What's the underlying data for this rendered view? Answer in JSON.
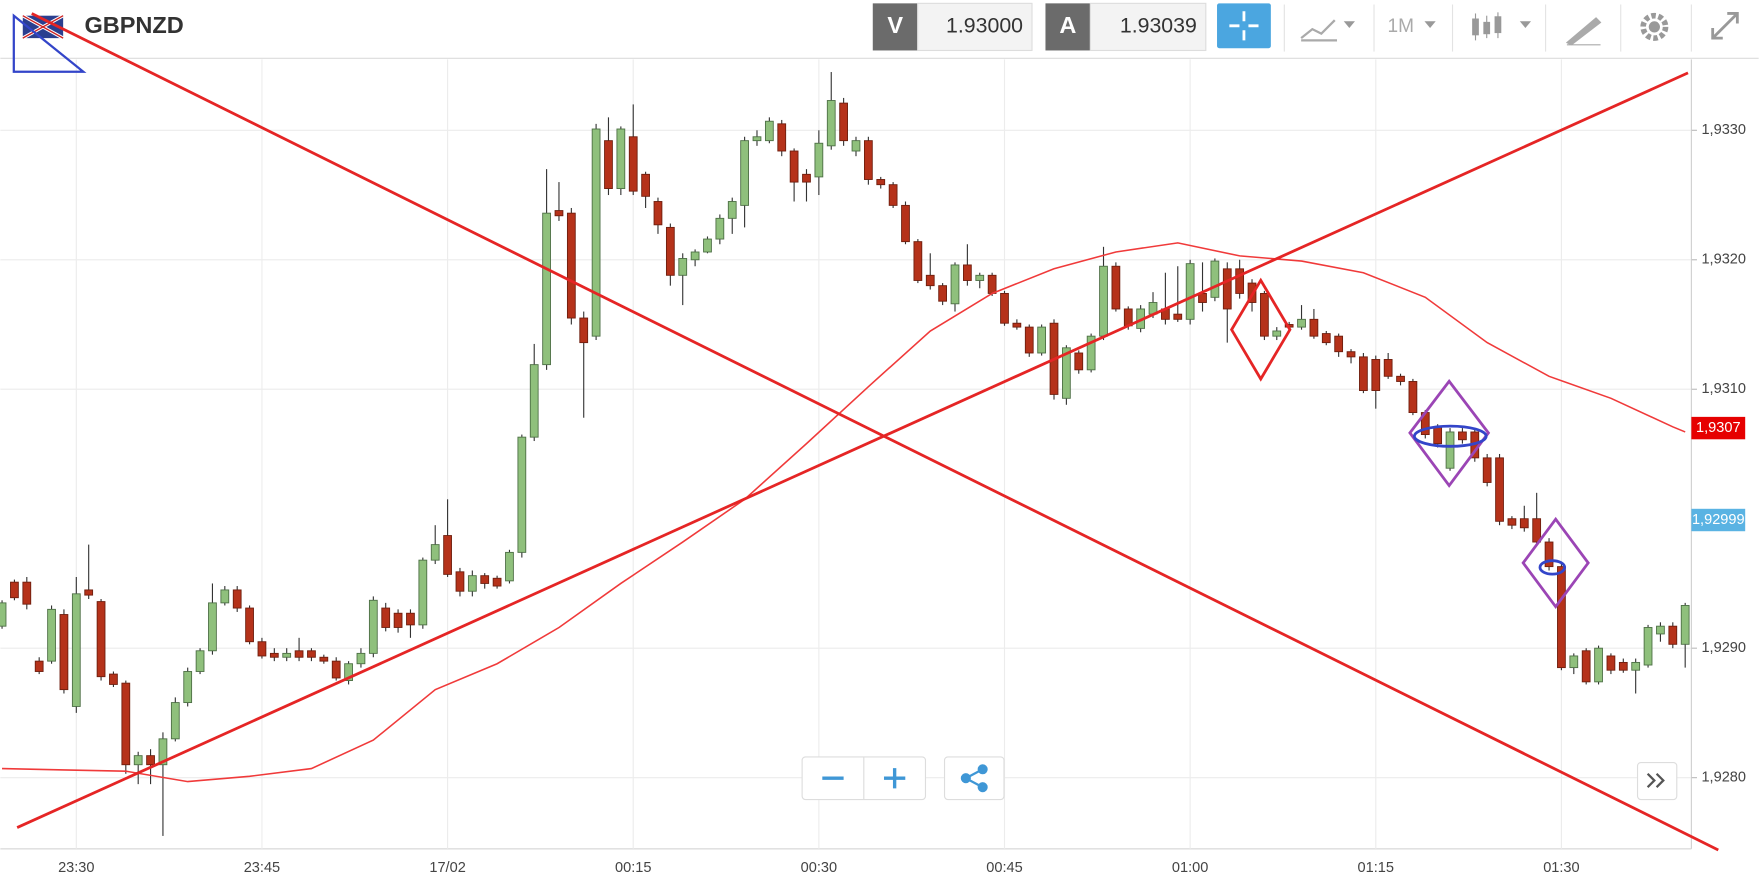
{
  "header": {
    "symbol": "GBPNZD",
    "sell_label": "V",
    "sell_price": "1.93000",
    "buy_label": "A",
    "buy_price": "1.93039",
    "timeframe": "1M"
  },
  "chart_data": {
    "type": "candlestick",
    "categories": [
      null,
      null,
      null,
      null,
      null,
      null,
      "23:30",
      null,
      null,
      null,
      null,
      null,
      null,
      null,
      null,
      null,
      null,
      null,
      null,
      null,
      null,
      "23:45",
      null,
      null,
      null,
      null,
      null,
      null,
      null,
      null,
      null,
      null,
      null,
      null,
      null,
      null,
      "17/02",
      null,
      null,
      null,
      null,
      null,
      null,
      null,
      null,
      null,
      null,
      null,
      null,
      null,
      null,
      "00:15",
      null,
      null,
      null,
      null,
      null,
      null,
      null,
      null,
      null,
      null,
      null,
      null,
      null,
      null,
      "00:30",
      null,
      null,
      null,
      null,
      null,
      null,
      null,
      null,
      null,
      null,
      null,
      null,
      null,
      null,
      "00:45",
      null,
      null,
      null,
      null,
      null,
      null,
      null,
      null,
      null,
      null,
      null,
      null,
      null,
      null,
      "01:00",
      null,
      null,
      null,
      null,
      null,
      null,
      null,
      null,
      null,
      null,
      null,
      null,
      null,
      null,
      "01:15",
      null,
      null,
      null,
      null,
      null,
      null,
      null,
      null,
      null,
      null,
      null,
      null,
      null,
      null,
      "01:30",
      null,
      null,
      null,
      null,
      null,
      null,
      null,
      null,
      null,
      null
    ],
    "ohlc": [
      [
        1.92917,
        1.92937,
        1.92915,
        1.92935
      ],
      [
        1.92951,
        1.92953,
        1.92937,
        1.92939
      ],
      [
        1.92951,
        1.92955,
        1.9293,
        1.92934
      ],
      [
        1.9289,
        1.92893,
        1.9288,
        1.92882
      ],
      [
        1.9289,
        1.92933,
        1.92888,
        1.9293
      ],
      [
        1.92926,
        1.9293,
        1.92865,
        1.92868
      ],
      [
        1.92855,
        1.92955,
        1.9285,
        1.92942
      ],
      [
        1.92945,
        1.9298,
        1.92938,
        1.92941
      ],
      [
        1.92936,
        1.92938,
        1.92875,
        1.92878
      ],
      [
        1.9288,
        1.92882,
        1.9287,
        1.92872
      ],
      [
        1.92873,
        1.92875,
        1.92803,
        1.9281
      ],
      [
        1.9281,
        1.9282,
        1.92795,
        1.92817
      ],
      [
        1.92817,
        1.92822,
        1.92795,
        1.9281
      ],
      [
        1.9281,
        1.92835,
        1.92755,
        1.9283
      ],
      [
        1.9283,
        1.92862,
        1.92828,
        1.92858
      ],
      [
        1.92858,
        1.92885,
        1.92855,
        1.92882
      ],
      [
        1.92882,
        1.929,
        1.9288,
        1.92898
      ],
      [
        1.92898,
        1.9295,
        1.92895,
        1.92935
      ],
      [
        1.92935,
        1.92948,
        1.92933,
        1.92945
      ],
      [
        1.92945,
        1.92948,
        1.92928,
        1.92931
      ],
      [
        1.92931,
        1.92933,
        1.92903,
        1.92905
      ],
      [
        1.92905,
        1.92908,
        1.92892,
        1.92894
      ],
      [
        1.92896,
        1.929,
        1.9289,
        1.92893
      ],
      [
        1.92893,
        1.929,
        1.9289,
        1.92896
      ],
      [
        1.92898,
        1.92908,
        1.9289,
        1.92893
      ],
      [
        1.92898,
        1.929,
        1.9289,
        1.92893
      ],
      [
        1.92893,
        1.92895,
        1.92888,
        1.9289
      ],
      [
        1.9289,
        1.92893,
        1.92875,
        1.92877
      ],
      [
        1.92875,
        1.9289,
        1.92872,
        1.92888
      ],
      [
        1.92888,
        1.929,
        1.92885,
        1.92896
      ],
      [
        1.92896,
        1.9294,
        1.92893,
        1.92937
      ],
      [
        1.92931,
        1.92935,
        1.92913,
        1.92916
      ],
      [
        1.92927,
        1.9293,
        1.92912,
        1.92916
      ],
      [
        1.92927,
        1.9293,
        1.92908,
        1.92918
      ],
      [
        1.92918,
        1.9297,
        1.92915,
        1.92968
      ],
      [
        1.92968,
        1.92995,
        1.92965,
        1.9298
      ],
      [
        1.92987,
        1.93015,
        1.92955,
        1.92957
      ],
      [
        1.92959,
        1.92962,
        1.9294,
        1.92944
      ],
      [
        1.92944,
        1.9296,
        1.9294,
        1.92956
      ],
      [
        1.92956,
        1.92958,
        1.92946,
        1.9295
      ],
      [
        1.92954,
        1.92956,
        1.92946,
        1.92948
      ],
      [
        1.92952,
        1.92976,
        1.9295,
        1.92974
      ],
      [
        1.92974,
        1.93065,
        1.9297,
        1.93063
      ],
      [
        1.93063,
        1.93135,
        1.9306,
        1.93119
      ],
      [
        1.93119,
        1.9327,
        1.93115,
        1.93236
      ],
      [
        1.93238,
        1.9326,
        1.9323,
        1.93234
      ],
      [
        1.93236,
        1.9324,
        1.9315,
        1.93155
      ],
      [
        1.93155,
        1.9316,
        1.93078,
        1.93136
      ],
      [
        1.93141,
        1.93305,
        1.93138,
        1.93301
      ],
      [
        1.93292,
        1.9331,
        1.9325,
        1.93255
      ],
      [
        1.93255,
        1.93303,
        1.9325,
        1.93301
      ],
      [
        1.93295,
        1.9332,
        1.9325,
        1.93253
      ],
      [
        1.93266,
        1.93268,
        1.9324,
        1.93249
      ],
      [
        1.93245,
        1.93248,
        1.9322,
        1.93227
      ],
      [
        1.93225,
        1.93228,
        1.9318,
        1.93188
      ],
      [
        1.93188,
        1.93205,
        1.93165,
        1.93201
      ],
      [
        1.932,
        1.93208,
        1.93195,
        1.93206
      ],
      [
        1.93206,
        1.93218,
        1.93205,
        1.93216
      ],
      [
        1.93216,
        1.93235,
        1.93212,
        1.93232
      ],
      [
        1.93232,
        1.93248,
        1.9322,
        1.93245
      ],
      [
        1.93242,
        1.93295,
        1.93225,
        1.93292
      ],
      [
        1.93292,
        1.933,
        1.93288,
        1.93295
      ],
      [
        1.93292,
        1.9331,
        1.9329,
        1.93307
      ],
      [
        1.93305,
        1.93308,
        1.9328,
        1.93284
      ],
      [
        1.93284,
        1.93286,
        1.93245,
        1.9326
      ],
      [
        1.93266,
        1.9327,
        1.93245,
        1.9326
      ],
      [
        1.93264,
        1.933,
        1.9325,
        1.9329
      ],
      [
        1.93288,
        1.93345,
        1.93285,
        1.93323
      ],
      [
        1.93321,
        1.93325,
        1.93288,
        1.93292
      ],
      [
        1.93284,
        1.93295,
        1.9328,
        1.93292
      ],
      [
        1.93292,
        1.93295,
        1.93258,
        1.93262
      ],
      [
        1.93262,
        1.93264,
        1.93255,
        1.93258
      ],
      [
        1.93258,
        1.9326,
        1.9324,
        1.93242
      ],
      [
        1.93242,
        1.93245,
        1.93212,
        1.93214
      ],
      [
        1.93214,
        1.93216,
        1.93182,
        1.93184
      ],
      [
        1.93188,
        1.93205,
        1.93177,
        1.9318
      ],
      [
        1.9318,
        1.93182,
        1.93165,
        1.93168
      ],
      [
        1.93166,
        1.93198,
        1.9316,
        1.93196
      ],
      [
        1.93196,
        1.93212,
        1.9318,
        1.93184
      ],
      [
        1.93184,
        1.9319,
        1.93178,
        1.93188
      ],
      [
        1.93188,
        1.9319,
        1.93172,
        1.93174
      ],
      [
        1.93174,
        1.93176,
        1.93149,
        1.93151
      ],
      [
        1.93151,
        1.93154,
        1.93146,
        1.93148
      ],
      [
        1.93148,
        1.9315,
        1.93125,
        1.93128
      ],
      [
        1.93128,
        1.9315,
        1.93126,
        1.93148
      ],
      [
        1.93151,
        1.93154,
        1.93092,
        1.93096
      ],
      [
        1.93093,
        1.93134,
        1.93088,
        1.93132
      ],
      [
        1.93128,
        1.9313,
        1.93112,
        1.93115
      ],
      [
        1.93115,
        1.93143,
        1.93113,
        1.93141
      ],
      [
        1.93141,
        1.9321,
        1.93138,
        1.93195
      ],
      [
        1.93195,
        1.93198,
        1.9316,
        1.93162
      ],
      [
        1.93162,
        1.93164,
        1.93146,
        1.93149
      ],
      [
        1.93147,
        1.93165,
        1.93144,
        1.93162
      ],
      [
        1.93158,
        1.93175,
        1.93155,
        1.93167
      ],
      [
        1.93162,
        1.9319,
        1.9315,
        1.93154
      ],
      [
        1.93158,
        1.93195,
        1.93152,
        1.93154
      ],
      [
        1.93154,
        1.932,
        1.9315,
        1.93197
      ],
      [
        1.93174,
        1.93198,
        1.9316,
        1.93167
      ],
      [
        1.93171,
        1.93201,
        1.93168,
        1.93199
      ],
      [
        1.93193,
        1.93198,
        1.93136,
        1.93162
      ],
      [
        1.93193,
        1.932,
        1.9317,
        1.93174
      ],
      [
        1.93182,
        1.93185,
        1.9316,
        1.93167
      ],
      [
        1.93174,
        1.93176,
        1.93138,
        1.93141
      ],
      [
        1.93141,
        1.93148,
        1.93138,
        1.93145
      ],
      [
        1.9315,
        1.93152,
        1.93146,
        1.93148
      ],
      [
        1.93148,
        1.93165,
        1.93146,
        1.93154
      ],
      [
        1.93154,
        1.93162,
        1.93139,
        1.93141
      ],
      [
        1.93143,
        1.93145,
        1.93134,
        1.93136
      ],
      [
        1.93141,
        1.93143,
        1.93125,
        1.93129
      ],
      [
        1.93129,
        1.93131,
        1.9312,
        1.93125
      ],
      [
        1.93125,
        1.93128,
        1.93097,
        1.93099
      ],
      [
        1.93123,
        1.93126,
        1.93085,
        1.93099
      ],
      [
        1.93123,
        1.93128,
        1.93108,
        1.9311
      ],
      [
        1.9311,
        1.93112,
        1.93103,
        1.93106
      ],
      [
        1.93106,
        1.93108,
        1.9308,
        1.93082
      ],
      [
        1.93082,
        1.93084,
        1.93062,
        1.93065
      ],
      [
        1.93071,
        1.93073,
        1.93055,
        1.93058
      ],
      [
        1.93039,
        1.9307,
        1.93037,
        1.93067
      ],
      [
        1.93067,
        1.9307,
        1.93058,
        1.93061
      ],
      [
        1.93067,
        1.9307,
        1.93044,
        1.93047
      ],
      [
        1.93047,
        1.9305,
        1.93025,
        1.93028
      ],
      [
        1.93047,
        1.9305,
        1.92995,
        1.92998
      ],
      [
        1.93,
        1.93002,
        1.92992,
        1.92995
      ],
      [
        1.93,
        1.9301,
        1.9299,
        1.92993
      ],
      [
        1.93,
        1.9302,
        1.9298,
        1.92982
      ],
      [
        1.92982,
        1.92985,
        1.9296,
        1.92963
      ],
      [
        1.92963,
        1.92965,
        1.92883,
        1.92885
      ],
      [
        1.92885,
        1.92896,
        1.9288,
        1.92894
      ],
      [
        1.92898,
        1.929,
        1.92872,
        1.92874
      ],
      [
        1.92874,
        1.92902,
        1.92872,
        1.929
      ],
      [
        1.92894,
        1.92896,
        1.9288,
        1.92883
      ],
      [
        1.92889,
        1.92892,
        1.92881,
        1.92883
      ],
      [
        1.92883,
        1.92892,
        1.92865,
        1.92889
      ],
      [
        1.92887,
        1.92918,
        1.92885,
        1.92916
      ],
      [
        1.92911,
        1.9292,
        1.92905,
        1.92917
      ],
      [
        1.92917,
        1.9292,
        1.929,
        1.92903
      ],
      [
        1.92903,
        1.92935,
        1.92885,
        1.92933
      ]
    ],
    "up_color": "#8fc07c",
    "down_color": "#b5321a",
    "moving_average": {
      "color": "#f03a3a",
      "x": [
        0,
        5,
        10,
        15,
        20,
        25,
        30,
        35,
        40,
        45,
        50,
        55,
        60,
        65,
        70,
        75,
        80,
        85,
        90,
        95,
        100,
        105,
        110,
        115,
        120,
        125,
        130,
        135,
        136
      ],
      "values": [
        1.92807,
        1.92806,
        1.92805,
        1.92797,
        1.92801,
        1.92807,
        1.92829,
        1.92868,
        1.92888,
        1.92916,
        1.9295,
        1.92982,
        1.93015,
        1.93058,
        1.93102,
        1.93145,
        1.93174,
        1.93193,
        1.93206,
        1.93213,
        1.93203,
        1.93199,
        1.9319,
        1.93171,
        1.93136,
        1.9311,
        1.93093,
        1.93071,
        1.93067
      ]
    },
    "ylim": [
      1.92745,
      1.93353
    ],
    "yticks": [
      {
        "value": 1.933,
        "label": "1,9330"
      },
      {
        "value": 1.932,
        "label": "1,9320"
      },
      {
        "value": 1.931,
        "label": "1,9310"
      },
      {
        "value": 1.929,
        "label": "1,9290"
      },
      {
        "value": 1.928,
        "label": "1,9280"
      }
    ],
    "price_markers": [
      {
        "value": 1.9307,
        "label": "1,9307",
        "color": "#e60000"
      },
      {
        "value": 1.92999,
        "label": "1,92999",
        "color": "#5ab3e3"
      }
    ],
    "grid": true
  }
}
